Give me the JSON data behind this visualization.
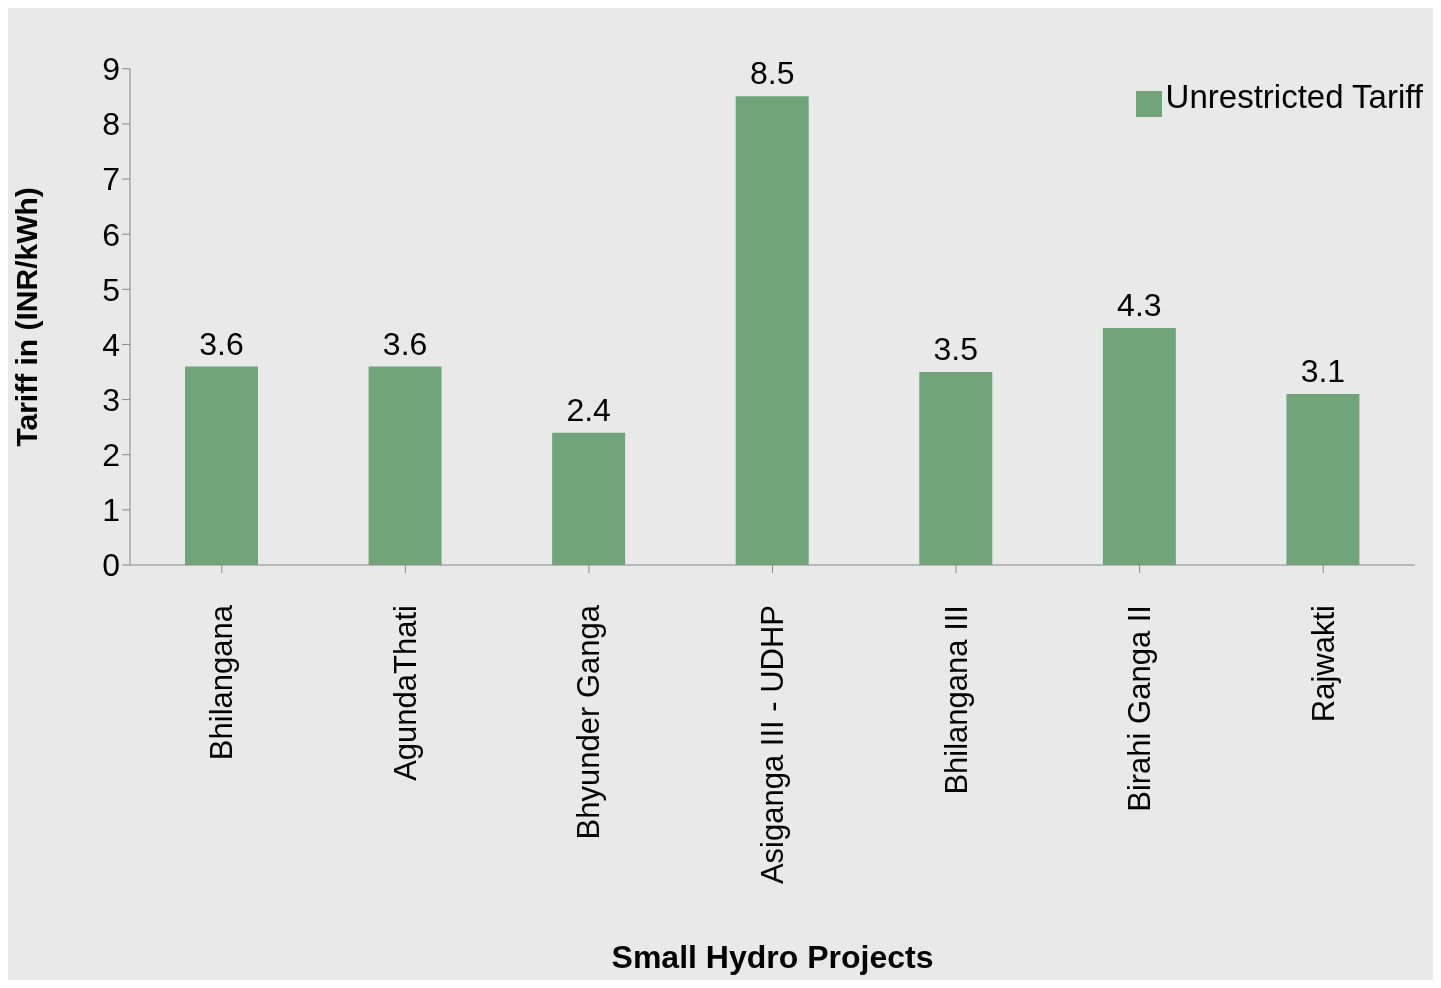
{
  "chart_data": {
    "type": "bar",
    "xlabel": "Small Hydro Projects",
    "ylabel": "Tariff in (INR/kWh)",
    "categories": [
      "Bhilangana",
      "AgundaThati",
      "Bhyunder Ganga",
      "Asiganga III - UDHP",
      "Bhilangana III",
      "Birahi Ganga II",
      "Rajwakti"
    ],
    "series": [
      {
        "name": "Unrestricted Tariff",
        "color": "#70a57a",
        "values": [
          3.6,
          3.6,
          2.4,
          8.5,
          3.5,
          4.3,
          3.1
        ]
      }
    ],
    "ylim": [
      0,
      9
    ],
    "yticks": [
      0,
      1,
      2,
      3,
      4,
      5,
      6,
      7,
      8,
      9
    ],
    "data_labels": true,
    "legend": "top right",
    "grid": false
  }
}
